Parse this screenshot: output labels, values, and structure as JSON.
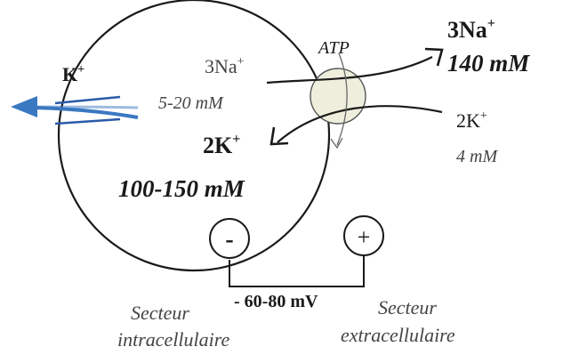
{
  "labels": {
    "k_channel_ion": "K",
    "k_channel_ion_sup": "+",
    "intra_na": "3Na",
    "intra_na_sup": "+",
    "intra_na_conc": "5-20 mM",
    "intra_k": "2K",
    "intra_k_sup": "+",
    "intra_k_conc": "100-150 mM",
    "pump": "ATP",
    "extra_na": "3Na",
    "extra_na_sup": "+",
    "extra_na_conc": "140 mM",
    "extra_k": "2K",
    "extra_k_sup": "+",
    "extra_k_conc": "4 mM",
    "minus_sign": "-",
    "plus_sign": "+",
    "potential": "- 60-80 mV",
    "intra_sector_line1": "Secteur",
    "intra_sector_line2": "intracellulaire",
    "extra_sector_line1": "Secteur",
    "extra_sector_line2": "extracellulaire"
  },
  "colors": {
    "efflux_arrow": "#3a78c2",
    "channel": "#2a5aa8",
    "pump_fill": "#eeeedd",
    "line": "#1a1a1a"
  }
}
